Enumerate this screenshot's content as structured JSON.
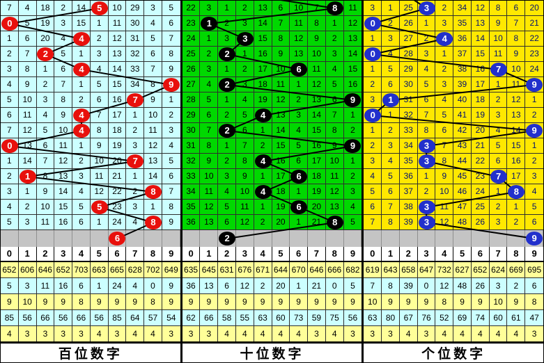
{
  "chart_data": {
    "type": "table",
    "legend_note": "lottery 3D digit trend chart, three position panels; ball marks drawn digit per row, grid numbers are miss counts",
    "stats_row_colors": [
      "#FFFF99",
      "#CCFFFF",
      "#FFFF99",
      "#CCFFFF",
      "#FFFF99"
    ],
    "line_color": "#000000",
    "pending_row_color": "#C4C4C4",
    "panels": [
      {
        "id": "hundreds",
        "label": "百位数字",
        "colors": {
          "bg": "#CCFFFF",
          "ball": "#E8100C",
          "ball_text": "#FFFFFF",
          "cell_text": "#000000"
        },
        "header": [
          "0",
          "1",
          "2",
          "3",
          "4",
          "5",
          "6",
          "7",
          "8",
          "9"
        ],
        "ball_cols": [
          5,
          0,
          4,
          2,
          4,
          9,
          7,
          4,
          4,
          0,
          7,
          1,
          8,
          5,
          8
        ],
        "pending_col": 6,
        "pending_digit": 6,
        "incoming_x": null,
        "rows": [
          [
            7,
            4,
            18,
            2,
            14,
            5,
            10,
            29,
            3,
            5
          ],
          [
            0,
            5,
            19,
            3,
            15,
            1,
            11,
            30,
            4,
            6
          ],
          [
            1,
            6,
            20,
            4,
            4,
            2,
            12,
            31,
            5,
            7
          ],
          [
            2,
            7,
            2,
            5,
            1,
            3,
            13,
            32,
            6,
            8
          ],
          [
            3,
            8,
            1,
            6,
            4,
            4,
            14,
            33,
            7,
            9
          ],
          [
            4,
            9,
            2,
            7,
            1,
            5,
            15,
            34,
            8,
            9
          ],
          [
            5,
            10,
            3,
            8,
            2,
            6,
            16,
            7,
            9,
            1
          ],
          [
            6,
            11,
            4,
            9,
            4,
            7,
            17,
            1,
            10,
            2
          ],
          [
            7,
            12,
            5,
            10,
            4,
            8,
            18,
            2,
            11,
            3
          ],
          [
            0,
            13,
            6,
            11,
            1,
            9,
            19,
            3,
            12,
            4
          ],
          [
            1,
            14,
            7,
            12,
            2,
            10,
            20,
            7,
            13,
            5
          ],
          [
            2,
            1,
            8,
            13,
            3,
            11,
            21,
            1,
            14,
            6
          ],
          [
            3,
            1,
            9,
            14,
            4,
            12,
            22,
            2,
            8,
            7
          ],
          [
            4,
            2,
            10,
            15,
            5,
            5,
            23,
            3,
            1,
            8
          ],
          [
            5,
            3,
            11,
            16,
            6,
            1,
            24,
            4,
            8,
            9
          ]
        ],
        "stats": [
          [
            652,
            606,
            646,
            652,
            703,
            663,
            665,
            628,
            702,
            649
          ],
          [
            5,
            3,
            11,
            16,
            6,
            1,
            24,
            4,
            0,
            9
          ],
          [
            9,
            10,
            9,
            9,
            8,
            9,
            9,
            9,
            8,
            9
          ],
          [
            85,
            56,
            66,
            56,
            66,
            56,
            85,
            64,
            57,
            54
          ],
          [
            4,
            3,
            3,
            3,
            3,
            4,
            3,
            4,
            4,
            3
          ]
        ]
      },
      {
        "id": "tens",
        "label": "十位数字",
        "colors": {
          "bg": "#00D800",
          "ball": "#000000",
          "ball_text": "#FFFFFF",
          "cell_text": "#000000"
        },
        "header": [
          "0",
          "1",
          "2",
          "3",
          "4",
          "5",
          "6",
          "7",
          "8",
          "9"
        ],
        "ball_cols": [
          8,
          1,
          3,
          2,
          6,
          2,
          9,
          4,
          2,
          9,
          4,
          6,
          4,
          6,
          8
        ],
        "pending_col": 2,
        "pending_digit": 2,
        "incoming_x": 129,
        "rows": [
          [
            22,
            3,
            1,
            2,
            13,
            6,
            10,
            7,
            8,
            11
          ],
          [
            23,
            1,
            2,
            3,
            14,
            7,
            11,
            8,
            1,
            12
          ],
          [
            24,
            1,
            3,
            3,
            15,
            8,
            12,
            9,
            2,
            13
          ],
          [
            25,
            2,
            2,
            1,
            16,
            9,
            13,
            10,
            3,
            14
          ],
          [
            26,
            3,
            1,
            2,
            17,
            10,
            6,
            11,
            4,
            15
          ],
          [
            27,
            4,
            2,
            3,
            18,
            11,
            1,
            12,
            5,
            16
          ],
          [
            28,
            5,
            1,
            4,
            19,
            12,
            2,
            13,
            6,
            9
          ],
          [
            29,
            6,
            2,
            5,
            4,
            13,
            3,
            14,
            7,
            1
          ],
          [
            30,
            7,
            2,
            6,
            1,
            14,
            4,
            15,
            8,
            2
          ],
          [
            31,
            8,
            1,
            7,
            2,
            15,
            5,
            16,
            9,
            9
          ],
          [
            32,
            9,
            2,
            8,
            4,
            16,
            6,
            17,
            10,
            1
          ],
          [
            33,
            10,
            3,
            9,
            1,
            17,
            6,
            18,
            11,
            2
          ],
          [
            34,
            11,
            4,
            10,
            4,
            18,
            1,
            19,
            12,
            3
          ],
          [
            35,
            12,
            5,
            11,
            1,
            19,
            6,
            20,
            13,
            4
          ],
          [
            36,
            13,
            6,
            12,
            2,
            20,
            1,
            21,
            8,
            5
          ]
        ],
        "stats": [
          [
            635,
            645,
            631,
            676,
            671,
            644,
            670,
            646,
            666,
            682
          ],
          [
            36,
            13,
            6,
            12,
            2,
            20,
            1,
            21,
            0,
            5
          ],
          [
            9,
            9,
            9,
            9,
            9,
            9,
            9,
            9,
            9,
            9
          ],
          [
            62,
            66,
            58,
            55,
            63,
            60,
            73,
            59,
            75,
            56
          ],
          [
            3,
            3,
            4,
            4,
            4,
            4,
            4,
            3,
            4,
            3
          ]
        ]
      },
      {
        "id": "units",
        "label": "个位数字",
        "colors": {
          "bg": "#FFE800",
          "ball": "#2230CC",
          "ball_text": "#FFFFFF",
          "cell_text": "#001070"
        },
        "header": [
          "0",
          "1",
          "2",
          "3",
          "4",
          "5",
          "6",
          "7",
          "8",
          "9"
        ],
        "ball_cols": [
          3,
          0,
          4,
          0,
          7,
          9,
          1,
          0,
          9,
          3,
          3,
          7,
          8,
          3,
          3
        ],
        "pending_col": 9,
        "pending_digit": 9,
        "incoming_x": 70,
        "rows": [
          [
            3,
            1,
            25,
            3,
            2,
            34,
            12,
            8,
            6,
            20
          ],
          [
            0,
            2,
            26,
            1,
            3,
            35,
            13,
            9,
            7,
            21
          ],
          [
            1,
            3,
            27,
            2,
            4,
            36,
            14,
            10,
            8,
            22
          ],
          [
            0,
            4,
            28,
            3,
            1,
            37,
            15,
            11,
            9,
            23
          ],
          [
            1,
            5,
            29,
            4,
            2,
            38,
            16,
            7,
            10,
            24
          ],
          [
            2,
            6,
            30,
            5,
            3,
            39,
            17,
            1,
            11,
            9
          ],
          [
            3,
            1,
            31,
            6,
            4,
            40,
            18,
            2,
            12,
            1
          ],
          [
            0,
            1,
            32,
            7,
            5,
            41,
            19,
            3,
            13,
            2
          ],
          [
            1,
            2,
            33,
            8,
            6,
            42,
            20,
            4,
            14,
            9
          ],
          [
            2,
            3,
            34,
            3,
            7,
            43,
            21,
            5,
            15,
            1
          ],
          [
            3,
            4,
            35,
            3,
            8,
            44,
            22,
            6,
            16,
            2
          ],
          [
            4,
            5,
            36,
            1,
            9,
            45,
            23,
            7,
            17,
            3
          ],
          [
            5,
            6,
            37,
            2,
            10,
            46,
            24,
            1,
            8,
            4
          ],
          [
            6,
            7,
            38,
            3,
            11,
            47,
            25,
            2,
            1,
            5
          ],
          [
            7,
            8,
            39,
            3,
            12,
            48,
            26,
            3,
            2,
            6
          ]
        ],
        "stats": [
          [
            619,
            643,
            658,
            647,
            732,
            627,
            652,
            624,
            669,
            695
          ],
          [
            7,
            8,
            39,
            0,
            12,
            48,
            26,
            3,
            2,
            6
          ],
          [
            10,
            9,
            9,
            9,
            8,
            9,
            9,
            10,
            9,
            8
          ],
          [
            63,
            80,
            67,
            76,
            52,
            69,
            74,
            60,
            61,
            47
          ],
          [
            3,
            3,
            4,
            3,
            4,
            4,
            4,
            4,
            4,
            3
          ]
        ]
      }
    ]
  }
}
